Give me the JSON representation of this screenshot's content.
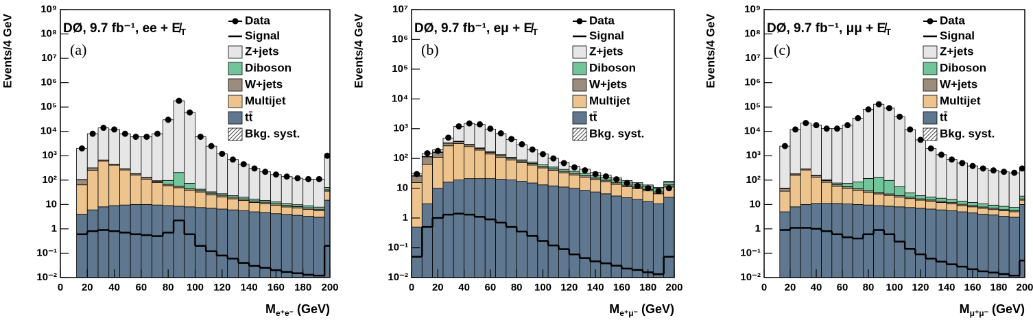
{
  "chart_data": [
    {
      "type": "histogram",
      "title": "DØ, 9.7 fb⁻¹, ee + E̸",
      "title_sub": "T",
      "panel_label": "(a)",
      "xlabel": "M",
      "xlabel_sub": "e⁺e⁻",
      "xlabel_unit": "(GeV)",
      "ylabel": "Events/4 GeV",
      "xlim": [
        0,
        200
      ],
      "xticks": [
        0,
        20,
        40,
        60,
        80,
        100,
        120,
        140,
        160,
        180,
        200
      ],
      "ylim": [
        0.01,
        1000000000
      ],
      "log_y": true,
      "yticks": [
        {
          "value": 0.01,
          "label": "10⁻²"
        },
        {
          "value": 0.1,
          "label": "10⁻¹"
        },
        1,
        10,
        {
          "value": 100,
          "label": "10²"
        },
        {
          "value": 1000,
          "label": "10³"
        },
        {
          "value": 10000,
          "label": "10⁴"
        },
        {
          "value": 100000,
          "label": "10⁵"
        },
        {
          "value": 1000000,
          "label": "10⁶"
        },
        {
          "value": 10000000,
          "label": "10⁷"
        },
        {
          "value": 100000000,
          "label": "10⁸"
        },
        {
          "value": 1000000000,
          "label": "10⁹"
        }
      ],
      "bins": [
        12,
        20,
        28,
        36,
        44,
        52,
        60,
        68,
        76,
        84,
        92,
        100,
        108,
        116,
        124,
        132,
        140,
        148,
        156,
        164,
        172,
        180,
        188,
        196,
        200
      ],
      "series": [
        {
          "name": "Data",
          "style": "points",
          "color": "#000000",
          "values": [
            2000,
            8000,
            14000,
            12000,
            8000,
            6000,
            6000,
            8000,
            30000,
            180000,
            60000,
            6000,
            2500,
            1200,
            700,
            450,
            300,
            220,
            170,
            140,
            120,
            110,
            110,
            1000
          ]
        },
        {
          "name": "Signal",
          "style": "line",
          "color": "#000000",
          "values": [
            0.6,
            0.8,
            0.9,
            0.8,
            0.7,
            0.6,
            0.55,
            0.5,
            0.7,
            2.2,
            0.6,
            0.2,
            0.12,
            0.08,
            0.06,
            0.04,
            0.03,
            0.025,
            0.02,
            0.017,
            0.015,
            0.013,
            0.012,
            0.2
          ]
        },
        {
          "name": "Z+jets",
          "style": "fill",
          "color": "#e6e6e6",
          "values": [
            1900,
            7700,
            13300,
            11500,
            7700,
            5800,
            5850,
            7900,
            29900,
            180000,
            59900,
            5950,
            2450,
            1170,
            680,
            430,
            285,
            205,
            155,
            128,
            110,
            100,
            100,
            900
          ]
        },
        {
          "name": "Diboson",
          "style": "fill",
          "color": "#72c49a",
          "values": [
            2,
            3,
            4,
            4,
            4,
            4,
            4,
            5,
            30,
            150,
            30,
            5,
            4,
            3.5,
            3,
            3,
            2.5,
            2.2,
            2,
            1.8,
            1.6,
            1.5,
            1.4,
            10
          ]
        },
        {
          "name": "W+jets",
          "style": "fill",
          "color": "#9c8c7c",
          "values": [
            40,
            60,
            60,
            40,
            30,
            20,
            15,
            10,
            8,
            7,
            6,
            5,
            4,
            3.5,
            3,
            2.5,
            2,
            1.8,
            1.5,
            1.3,
            1.1,
            1,
            0.9,
            5
          ]
        },
        {
          "name": "Multijet",
          "style": "fill",
          "color": "#eec48e",
          "values": [
            60,
            250,
            600,
            400,
            250,
            150,
            100,
            70,
            50,
            40,
            30,
            25,
            18,
            14,
            11,
            9,
            7,
            6,
            5,
            4,
            3.5,
            3,
            2.5,
            20
          ]
        },
        {
          "name": "tt̄",
          "style": "fill",
          "color": "#5f7890",
          "values": [
            4,
            6,
            8,
            9,
            9.5,
            10,
            10,
            9.5,
            9,
            8.5,
            8,
            7.5,
            7,
            6.5,
            6,
            5.5,
            5,
            4.6,
            4.2,
            3.9,
            3.6,
            3.3,
            3,
            15
          ]
        }
      ],
      "syst_label": "Bkg. syst."
    },
    {
      "type": "histogram",
      "title": "DØ, 9.7 fb⁻¹, eμ + E̸",
      "title_sub": "T",
      "panel_label": "(b)",
      "xlabel": "M",
      "xlabel_sub": "e⁺μ⁻",
      "xlabel_unit": "(GeV)",
      "ylabel": "Events/4 GeV",
      "xlim": [
        0,
        200
      ],
      "xticks": [
        0,
        20,
        40,
        60,
        80,
        100,
        120,
        140,
        160,
        180,
        200
      ],
      "ylim": [
        0.01,
        10000000
      ],
      "log_y": true,
      "yticks": [
        {
          "value": 0.01,
          "label": "10⁻²"
        },
        {
          "value": 0.1,
          "label": "10⁻¹"
        },
        1,
        10,
        {
          "value": 100,
          "label": "10²"
        },
        {
          "value": 1000,
          "label": "10³"
        },
        {
          "value": 10000,
          "label": "10⁴"
        },
        {
          "value": 100000,
          "label": "10⁵"
        },
        {
          "value": 1000000,
          "label": "10⁶"
        },
        {
          "value": 10000000,
          "label": "10⁷"
        }
      ],
      "bins": [
        0,
        8,
        16,
        24,
        32,
        40,
        48,
        56,
        64,
        72,
        80,
        88,
        96,
        104,
        112,
        120,
        128,
        136,
        144,
        152,
        160,
        168,
        176,
        184,
        192,
        200
      ],
      "series": [
        {
          "name": "Data",
          "style": "points",
          "color": "#000000",
          "values": [
            30,
            150,
            180,
            500,
            1200,
            1500,
            1400,
            1000,
            700,
            450,
            300,
            200,
            140,
            100,
            70,
            50,
            40,
            30,
            25,
            20,
            15,
            12,
            10,
            8,
            10
          ]
        },
        {
          "name": "Signal",
          "style": "line",
          "color": "#000000",
          "values": [
            0.05,
            0.5,
            1,
            1.3,
            1.4,
            1.3,
            1.1,
            0.9,
            0.7,
            0.5,
            0.35,
            0.25,
            0.17,
            0.12,
            0.09,
            0.06,
            0.045,
            0.035,
            0.03,
            0.025,
            0.02,
            0.018,
            0.015,
            0.013,
            0.05
          ]
        },
        {
          "name": "Z+jets",
          "style": "fill",
          "color": "#e6e6e6",
          "values": [
            5,
            30,
            30,
            150,
            800,
            1200,
            1150,
            800,
            550,
            330,
            200,
            120,
            80,
            50,
            30,
            18,
            12,
            7,
            5,
            3,
            2,
            1.5,
            1,
            0.7,
            1
          ]
        },
        {
          "name": "Diboson",
          "style": "fill",
          "color": "#72c49a",
          "values": [
            1,
            3,
            5,
            8,
            10,
            10,
            10,
            10,
            9,
            9,
            8,
            8,
            7,
            6.5,
            6,
            5.5,
            5,
            4.5,
            4,
            3.7,
            3.3,
            3,
            2.7,
            2.5,
            3
          ]
        },
        {
          "name": "W+jets",
          "style": "fill",
          "color": "#9c8c7c",
          "values": [
            10,
            50,
            50,
            60,
            50,
            35,
            25,
            20,
            15,
            12,
            10,
            8,
            6,
            5,
            4,
            3.5,
            3,
            2.5,
            2,
            1.8,
            1.5,
            1.3,
            1.1,
            1,
            2
          ]
        },
        {
          "name": "Multijet",
          "style": "fill",
          "color": "#eec48e",
          "values": [
            15,
            60,
            100,
            250,
            300,
            230,
            170,
            120,
            90,
            70,
            55,
            45,
            35,
            28,
            22,
            18,
            15,
            12,
            10,
            8,
            6.5,
            5.5,
            4.5,
            3.5,
            6
          ]
        },
        {
          "name": "tt̄",
          "style": "fill",
          "color": "#5f7890",
          "values": [
            0.5,
            3,
            10,
            16,
            19,
            21,
            21,
            21,
            20,
            19,
            17,
            15,
            13,
            12,
            11,
            10,
            8.5,
            7.5,
            6.5,
            5.5,
            4.8,
            4.2,
            3.6,
            3,
            5
          ]
        }
      ],
      "syst_label": "Bkg. syst."
    },
    {
      "type": "histogram",
      "title": "DØ, 9.7 fb⁻¹, μμ + E̸",
      "title_sub": "T",
      "panel_label": "(c)",
      "xlabel": "M",
      "xlabel_sub": "μ⁺μ⁻",
      "xlabel_unit": "(GeV)",
      "ylabel": "Events/4 GeV",
      "xlim": [
        0,
        200
      ],
      "xticks": [
        0,
        20,
        40,
        60,
        80,
        100,
        120,
        140,
        160,
        180,
        200
      ],
      "ylim": [
        0.01,
        1000000000
      ],
      "log_y": true,
      "yticks": [
        {
          "value": 0.01,
          "label": "10⁻²"
        },
        {
          "value": 0.1,
          "label": "10⁻¹"
        },
        1,
        10,
        {
          "value": 100,
          "label": "10²"
        },
        {
          "value": 1000,
          "label": "10³"
        },
        {
          "value": 10000,
          "label": "10⁴"
        },
        {
          "value": 100000,
          "label": "10⁵"
        },
        {
          "value": 1000000,
          "label": "10⁶"
        },
        {
          "value": 10000000,
          "label": "10⁷"
        },
        {
          "value": 100000000,
          "label": "10⁸"
        },
        {
          "value": 1000000000,
          "label": "10⁹"
        }
      ],
      "bins": [
        12,
        20,
        28,
        36,
        44,
        52,
        60,
        68,
        76,
        84,
        92,
        100,
        108,
        116,
        124,
        132,
        140,
        148,
        156,
        164,
        172,
        180,
        188,
        196,
        200
      ],
      "series": [
        {
          "name": "Data",
          "style": "points",
          "color": "#000000",
          "values": [
            2500,
            12000,
            22000,
            18000,
            13000,
            13000,
            18000,
            35000,
            80000,
            130000,
            90000,
            40000,
            12000,
            4500,
            2000,
            1100,
            700,
            500,
            380,
            300,
            250,
            220,
            200,
            300
          ]
        },
        {
          "name": "Signal",
          "style": "line",
          "color": "#000000",
          "values": [
            0.9,
            1.1,
            1.1,
            1,
            0.8,
            0.6,
            0.45,
            0.4,
            0.6,
            0.9,
            0.6,
            0.3,
            0.15,
            0.09,
            0.06,
            0.045,
            0.035,
            0.028,
            0.022,
            0.018,
            0.016,
            0.014,
            0.012,
            0.05
          ]
        },
        {
          "name": "Z+jets",
          "style": "fill",
          "color": "#e6e6e6",
          "values": [
            2450,
            11800,
            21700,
            17800,
            12900,
            12900,
            17900,
            34900,
            79900,
            129900,
            89900,
            39900,
            11970,
            4480,
            1980,
            1080,
            690,
            490,
            370,
            290,
            240,
            210,
            190,
            280
          ]
        },
        {
          "name": "Diboson",
          "style": "fill",
          "color": "#72c49a",
          "values": [
            2,
            4,
            5,
            6,
            7,
            10,
            20,
            40,
            80,
            100,
            70,
            30,
            10,
            6,
            5,
            4.5,
            4,
            3.5,
            3,
            2.7,
            2.4,
            2.2,
            2,
            5
          ]
        },
        {
          "name": "W+jets",
          "style": "fill",
          "color": "#9c8c7c",
          "values": [
            10,
            20,
            25,
            20,
            15,
            10,
            8,
            6,
            5,
            4,
            3.5,
            3,
            2.5,
            2,
            1.8,
            1.6,
            1.4,
            1.2,
            1,
            0.9,
            0.8,
            0.7,
            0.6,
            2
          ]
        },
        {
          "name": "Multijet",
          "style": "fill",
          "color": "#eec48e",
          "values": [
            30,
            150,
            250,
            120,
            70,
            45,
            35,
            28,
            22,
            18,
            15,
            12,
            10,
            8,
            7,
            6,
            5,
            4,
            3.5,
            3,
            2.5,
            2.2,
            2,
            5
          ]
        },
        {
          "name": "tt̄",
          "style": "fill",
          "color": "#5f7890",
          "values": [
            5,
            8,
            10,
            11,
            11,
            11,
            10.5,
            10,
            9.5,
            9,
            8.5,
            8,
            7.5,
            7,
            6.5,
            6,
            5.5,
            5,
            4.5,
            4,
            3.7,
            3.3,
            3,
            10
          ]
        }
      ],
      "syst_label": "Bkg. syst."
    }
  ]
}
